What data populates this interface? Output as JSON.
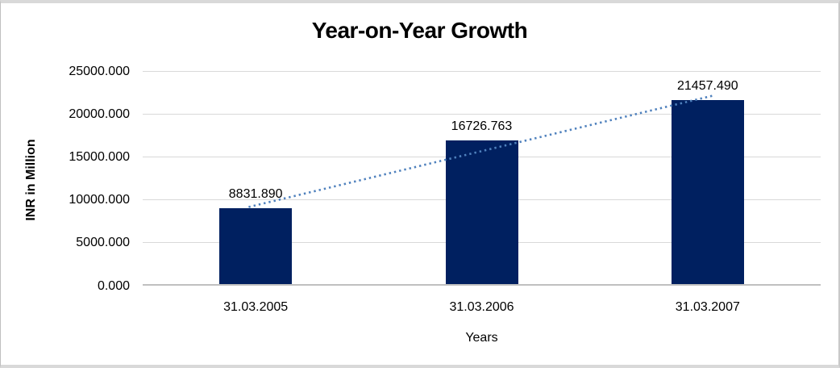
{
  "chart_data": {
    "type": "bar",
    "title": "Year-on-Year Growth",
    "categories": [
      "31.03.2005",
      "31.03.2006",
      "31.03.2007"
    ],
    "values": [
      8831.89,
      16726.763,
      21457.49
    ],
    "value_labels": [
      "8831.890",
      "16726.763",
      "21457.490"
    ],
    "xlabel": "Years",
    "ylabel": "INR in Million",
    "ylim": [
      0,
      25000
    ],
    "ytick_step": 5000,
    "ytick_labels": [
      "0.000",
      "5000.000",
      "10000.000",
      "15000.000",
      "20000.000",
      "25000.000"
    ],
    "grid": true,
    "legend": false,
    "bar_color": "#002060",
    "gridline_color": "#d9d9d9",
    "axis_line_color": "#c0c0c0",
    "trendline": {
      "type": "linear",
      "style": "dotted",
      "color": "#4f81bd"
    }
  }
}
